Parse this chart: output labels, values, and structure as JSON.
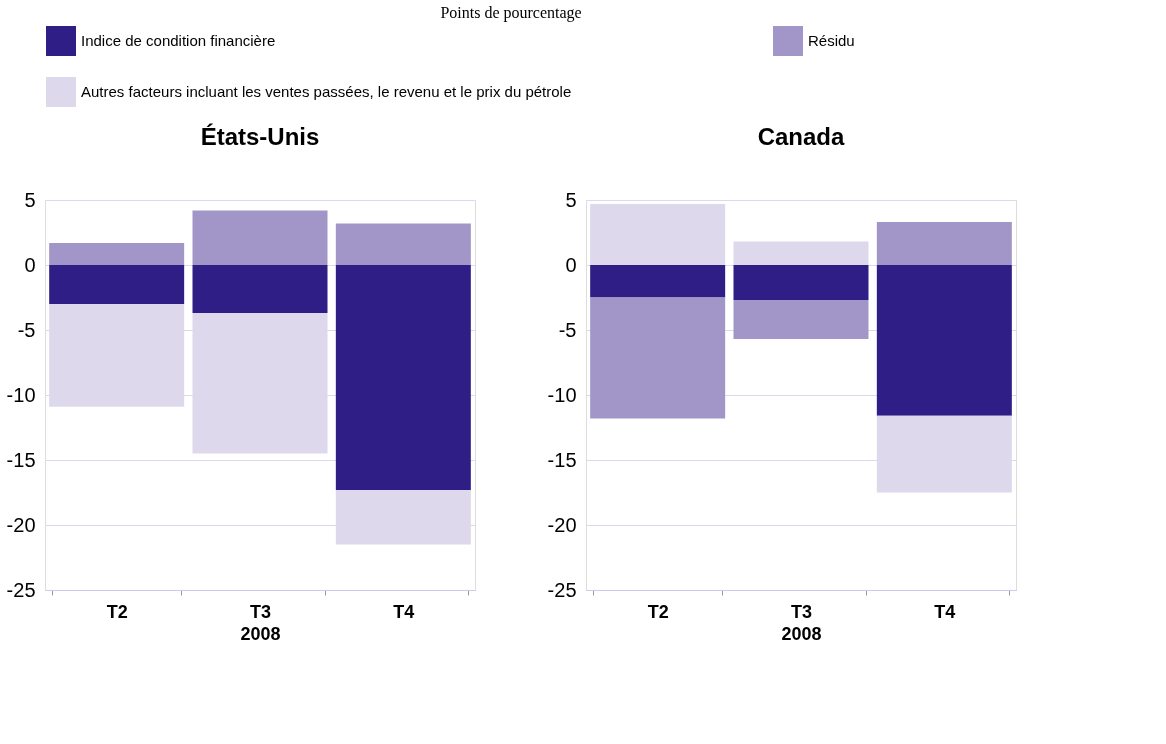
{
  "chart_data": [
    {
      "type": "bar",
      "title": "États-Unis",
      "legend_title": "Points de pourcentage",
      "xlabel": "2008",
      "categories": [
        "T2",
        "T3",
        "T4"
      ],
      "stacked": true,
      "ylim": [
        -25,
        5
      ],
      "yticks": [
        5,
        0,
        -5,
        -10,
        -15,
        -20,
        -25
      ],
      "grid": "y",
      "legend": "top",
      "series": [
        {
          "name": "Indice de condition financière",
          "color": "#2e1e86",
          "values": [
            -3.0,
            -3.7,
            -17.3
          ]
        },
        {
          "name": "Résidu",
          "color": "#a295c7",
          "values": [
            1.7,
            4.2,
            3.2
          ]
        },
        {
          "name": "Autres facteurs incluant les ventes passées, le revenu et le prix du pétrole",
          "color": "#ddd8ec",
          "values": [
            -7.9,
            -10.8,
            -4.2
          ]
        }
      ]
    },
    {
      "type": "bar",
      "title": "Canada",
      "xlabel": "2008",
      "categories": [
        "T2",
        "T3",
        "T4"
      ],
      "stacked": true,
      "ylim": [
        -25,
        5
      ],
      "yticks": [
        5,
        0,
        -5,
        -10,
        -15,
        -20,
        -25
      ],
      "grid": "y",
      "legend": "top",
      "series": [
        {
          "name": "Indice de condition financière",
          "color": "#2e1e86",
          "values": [
            -2.5,
            -2.7,
            -11.6
          ]
        },
        {
          "name": "Résidu",
          "color": "#a295c7",
          "values": [
            -9.3,
            -3.0,
            3.3
          ]
        },
        {
          "name": "Autres facteurs incluant les ventes passées, le revenu et le prix du pétrole",
          "color": "#ddd8ec",
          "values": [
            4.7,
            1.8,
            -5.9
          ]
        }
      ]
    }
  ]
}
